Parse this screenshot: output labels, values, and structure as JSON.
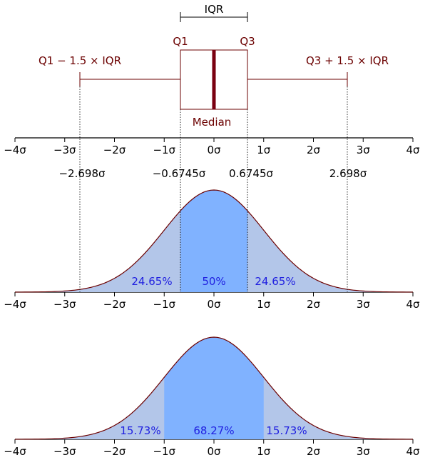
{
  "boxplot": {
    "iqr_label": "IQR",
    "q1_label": "Q1",
    "q3_label": "Q3",
    "median_label": "Median",
    "lower_fence_label": "Q1 − 1.5 × IQR",
    "upper_fence_label": "Q3 + 1.5 × IQR",
    "q1": -0.6745,
    "q3": 0.6745,
    "median": 0,
    "lower_fence": -2.698,
    "upper_fence": 2.698
  },
  "axis_ticks": [
    "−4σ",
    "−3σ",
    "−2σ",
    "−1σ",
    "0σ",
    "1σ",
    "2σ",
    "3σ",
    "4σ"
  ],
  "quantile_labels": [
    "−2.698σ",
    "−0.6745σ",
    "0.6745σ",
    "2.698σ"
  ],
  "top_curve": {
    "regions": [
      {
        "from": -2.698,
        "to": -0.6745,
        "label": "24.65%"
      },
      {
        "from": -0.6745,
        "to": 0.6745,
        "label": "50%"
      },
      {
        "from": 0.6745,
        "to": 2.698,
        "label": "24.65%"
      }
    ]
  },
  "bottom_curve": {
    "regions": [
      {
        "from": -4,
        "to": -1,
        "label": "15.73%"
      },
      {
        "from": -1,
        "to": 1,
        "label": "68.27%"
      },
      {
        "from": 1,
        "to": 4,
        "label": "15.73%"
      }
    ]
  },
  "colors": {
    "outline": "#6b0000",
    "median": "#7a0010",
    "light_fill": "#b3c6e9",
    "dark_fill": "#80b2ff",
    "percent_text": "#2020e0"
  }
}
